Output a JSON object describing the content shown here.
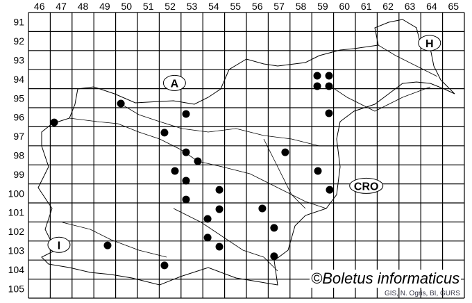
{
  "map": {
    "grid_columns": [
      "46",
      "47",
      "48",
      "49",
      "50",
      "51",
      "52",
      "53",
      "54",
      "55",
      "56",
      "57",
      "58",
      "59",
      "60",
      "61",
      "62",
      "63",
      "64",
      "65"
    ],
    "grid_rows": [
      "91",
      "92",
      "93",
      "94",
      "95",
      "96",
      "97",
      "98",
      "99",
      "100",
      "101",
      "102",
      "103",
      "104",
      "105"
    ],
    "country_labels": [
      {
        "text": "A",
        "col": 52.7,
        "row": 94.7
      },
      {
        "text": "H",
        "col": 64.4,
        "row": 92.6
      },
      {
        "text": "CRO",
        "col": 61.5,
        "row": 100.1
      },
      {
        "text": "I",
        "col": 47.4,
        "row": 103.2
      }
    ],
    "occurrences": [
      {
        "col": 47.18,
        "row": 96.77
      },
      {
        "col": 50.24,
        "row": 95.78
      },
      {
        "col": 53.23,
        "row": 96.33
      },
      {
        "col": 52.24,
        "row": 97.31
      },
      {
        "col": 53.23,
        "row": 98.34
      },
      {
        "col": 53.77,
        "row": 98.81
      },
      {
        "col": 52.72,
        "row": 99.32
      },
      {
        "col": 53.23,
        "row": 99.83
      },
      {
        "col": 53.23,
        "row": 100.82
      },
      {
        "col": 54.76,
        "row": 100.31
      },
      {
        "col": 54.76,
        "row": 101.33
      },
      {
        "col": 54.22,
        "row": 101.84
      },
      {
        "col": 54.22,
        "row": 102.82
      },
      {
        "col": 54.76,
        "row": 103.3
      },
      {
        "col": 52.24,
        "row": 104.28
      },
      {
        "col": 49.63,
        "row": 103.23
      },
      {
        "col": 56.73,
        "row": 101.29
      },
      {
        "col": 57.27,
        "row": 102.31
      },
      {
        "col": 57.27,
        "row": 103.8
      },
      {
        "col": 57.78,
        "row": 98.34
      },
      {
        "col": 59.25,
        "row": 94.32
      },
      {
        "col": 59.79,
        "row": 94.32
      },
      {
        "col": 59.25,
        "row": 94.87
      },
      {
        "col": 59.79,
        "row": 94.87
      },
      {
        "col": 59.79,
        "row": 96.29
      },
      {
        "col": 59.28,
        "row": 99.32
      },
      {
        "col": 59.82,
        "row": 100.31
      }
    ],
    "dot_color": "#000000"
  },
  "copyright": "©Boletus informaticus",
  "credit": "GIS, N. Ogris, BI, GURS"
}
